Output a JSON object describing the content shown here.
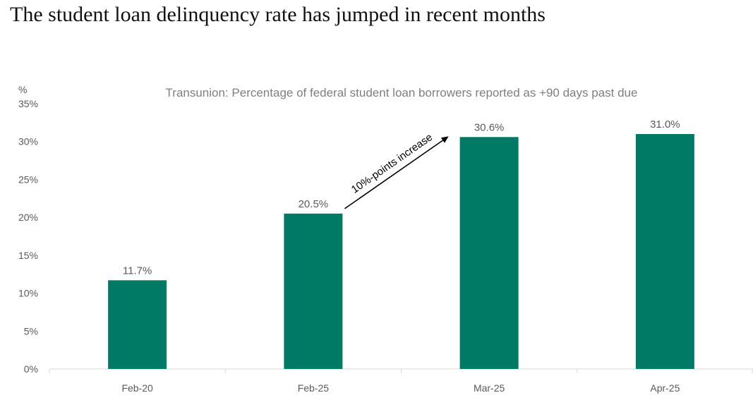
{
  "headline": "The student loan delinquency rate has jumped in recent months",
  "chart_data": {
    "type": "bar",
    "title": "Transunion: Percentage of federal student loan borrowers reported as +90 days past due",
    "ylabel": "%",
    "xlabel": "",
    "categories": [
      "Feb-20",
      "Feb-25",
      "Mar-25",
      "Apr-25"
    ],
    "values": [
      11.7,
      20.5,
      30.6,
      31.0
    ],
    "data_labels": [
      "11.7%",
      "20.5%",
      "30.6%",
      "31.0%"
    ],
    "ylim": [
      0,
      35
    ],
    "yticks": [
      0,
      5,
      10,
      15,
      20,
      25,
      30,
      35
    ],
    "ytick_labels": [
      "0%",
      "5%",
      "10%",
      "15%",
      "20%",
      "25%",
      "30%",
      "35%"
    ],
    "grid": false,
    "bar_color": "#007A64",
    "annotation": {
      "text": "10%-points increase",
      "from_category": "Feb-25",
      "to_category": "Mar-25"
    }
  }
}
